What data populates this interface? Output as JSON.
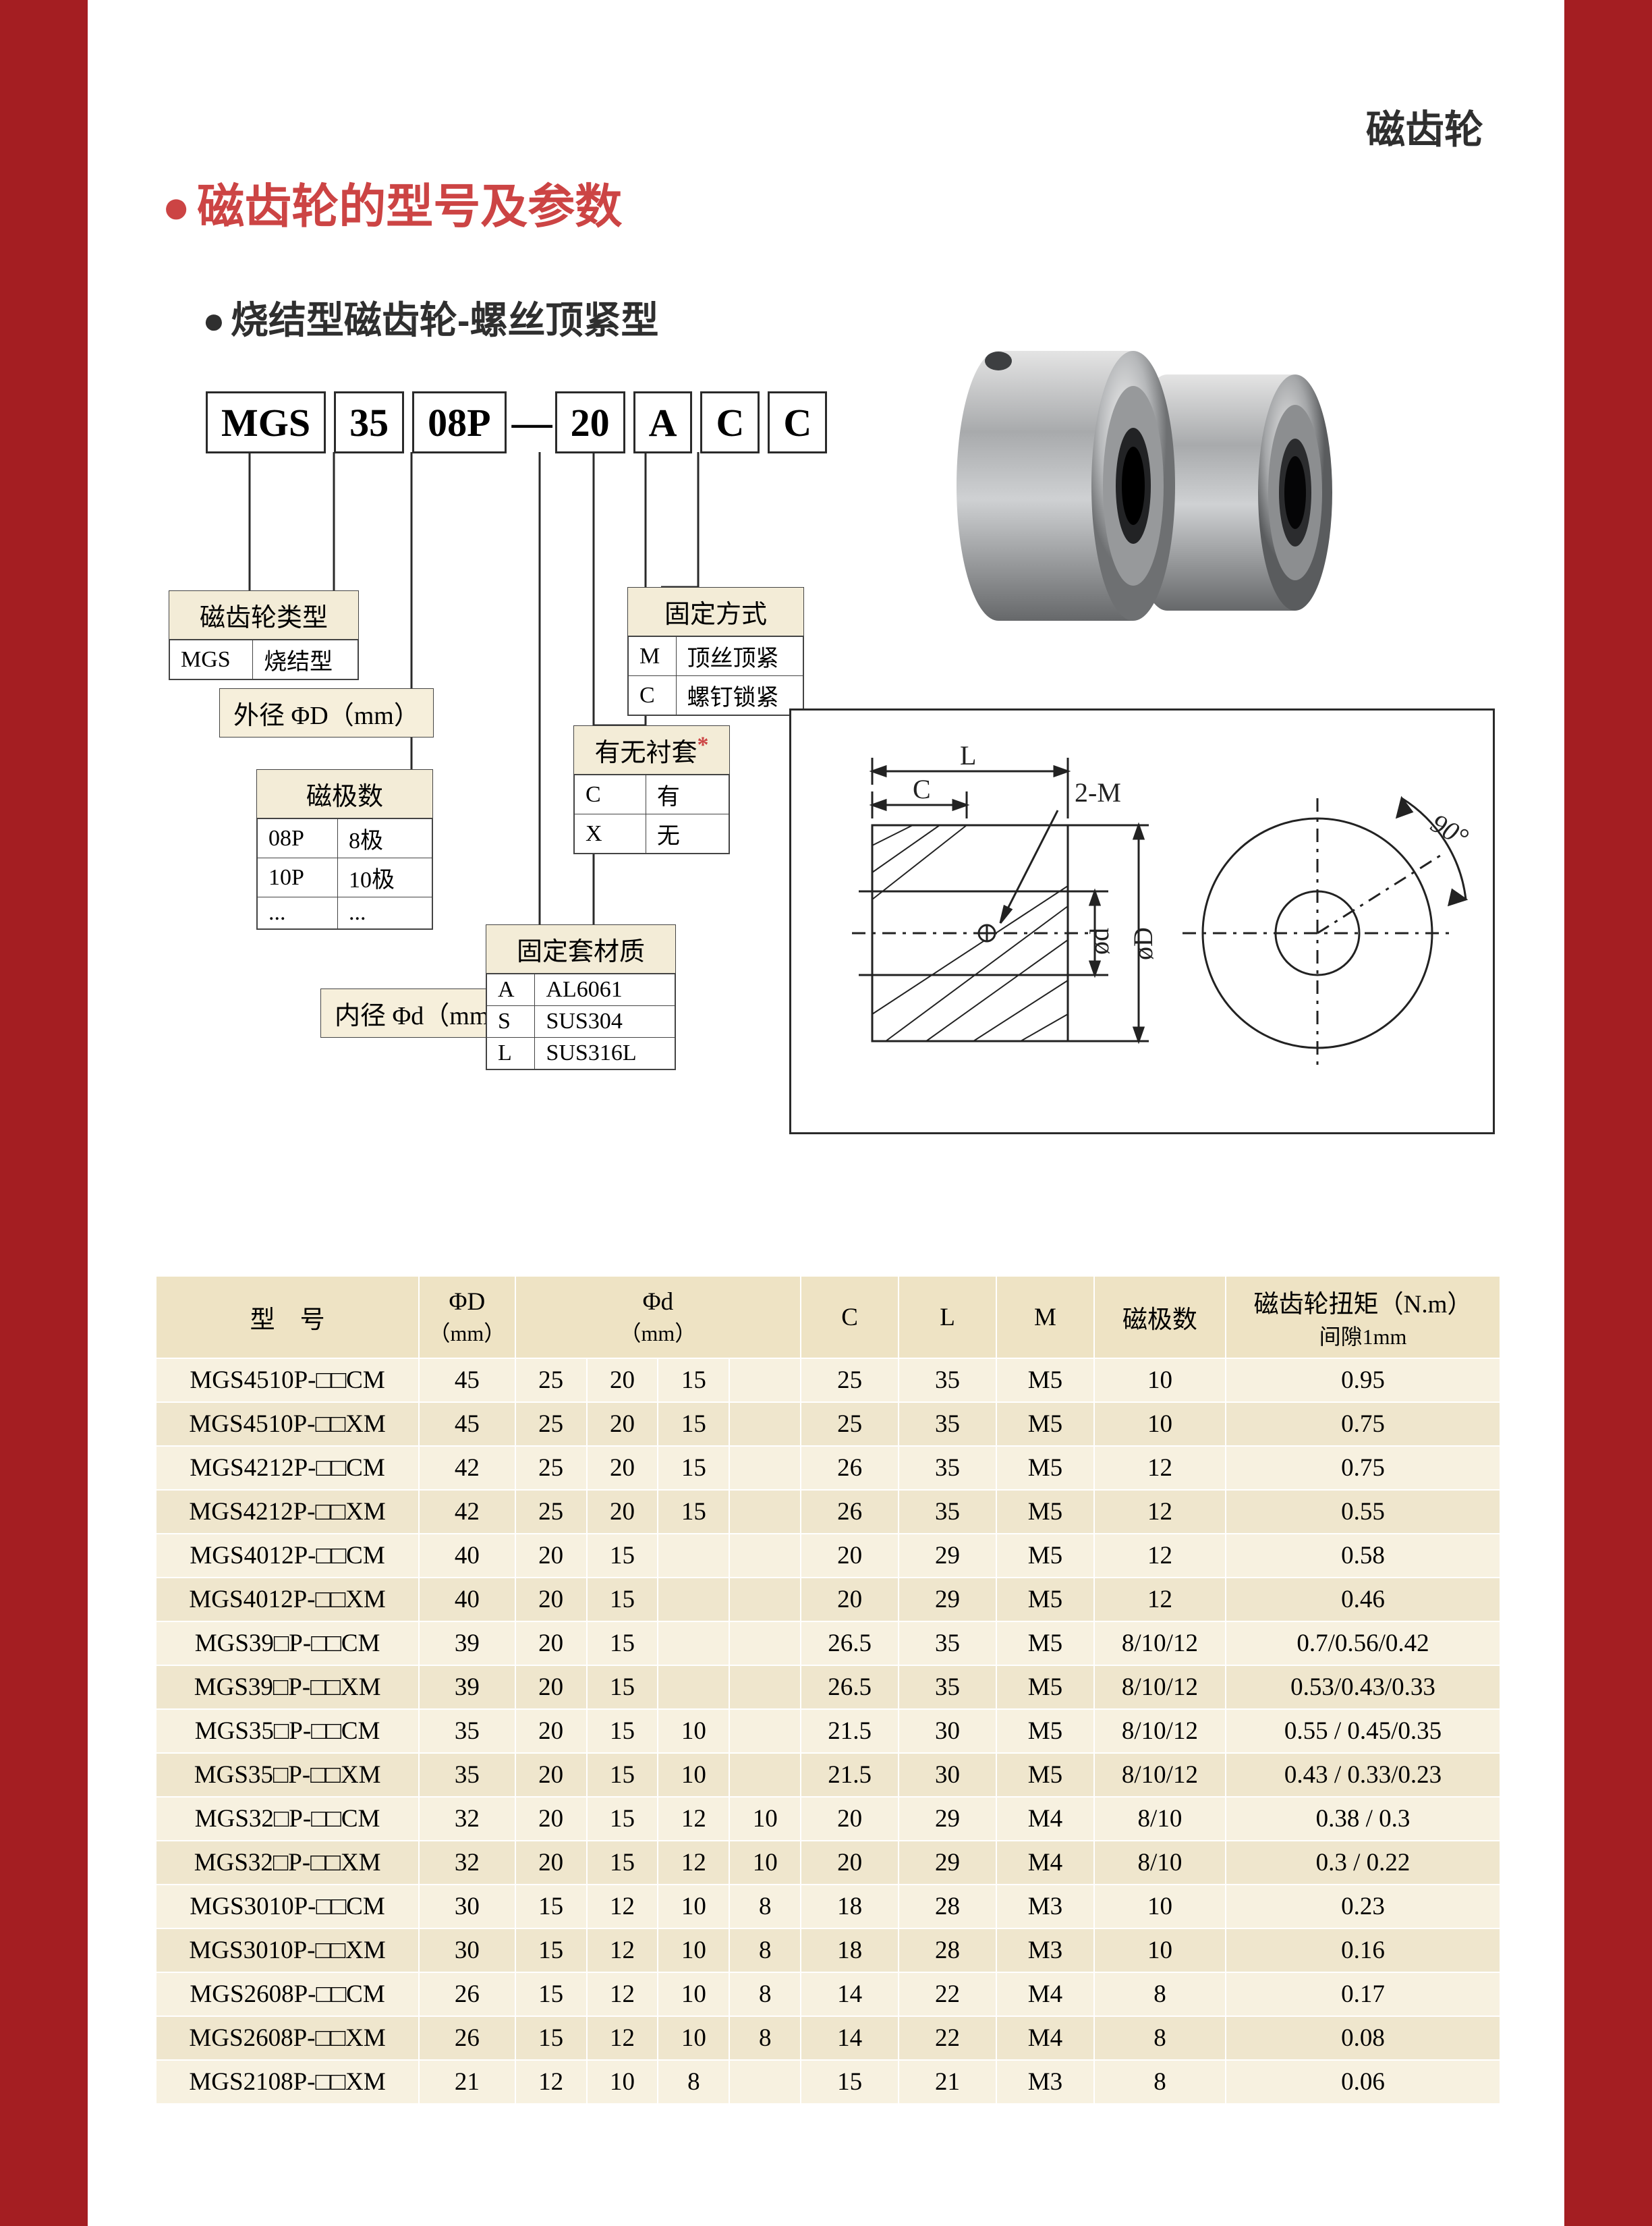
{
  "header": {
    "corner": "磁齿轮",
    "title": "磁齿轮的型号及参数",
    "subtitle": "烧结型磁齿轮-螺丝顶紧型"
  },
  "code": [
    "MGS",
    "35",
    "08P",
    "—",
    "20",
    "A",
    "C",
    "C"
  ],
  "legends": {
    "type": {
      "title": "磁齿轮类型",
      "rows": [
        [
          "MGS",
          "烧结型"
        ]
      ]
    },
    "od": {
      "text": "外径  ΦD（mm）"
    },
    "poles": {
      "title": "磁极数",
      "rows": [
        [
          "08P",
          "8极"
        ],
        [
          "10P",
          "10极"
        ],
        [
          "...",
          "..."
        ]
      ]
    },
    "id": {
      "text": "内径  Φd（mm）"
    },
    "mat": {
      "title": "固定套材质",
      "rows": [
        [
          "A",
          "AL6061"
        ],
        [
          "S",
          "SUS304"
        ],
        [
          "L",
          "SUS316L"
        ]
      ]
    },
    "sleeve": {
      "title": "有无衬套",
      "note": "*",
      "rows": [
        [
          "C",
          "有"
        ],
        [
          "X",
          "无"
        ]
      ]
    },
    "fix": {
      "title": "固定方式",
      "rows": [
        [
          "M",
          "顶丝顶紧"
        ],
        [
          "C",
          "螺钉锁紧"
        ]
      ]
    }
  },
  "tech": {
    "L": "L",
    "C": "C",
    "M": "2-M",
    "d": "ød",
    "D": "øD",
    "ang": "90°"
  },
  "table": {
    "headers": {
      "model": "型　号",
      "D": "ΦD",
      "Dunit": "（mm）",
      "d": "Φd",
      "dunit": "（mm）",
      "C": "C",
      "L": "L",
      "M": "M",
      "poles": "磁极数",
      "torque": "磁齿轮扭矩（N.m）",
      "gap": "间隙1mm"
    },
    "rows": [
      {
        "m": "MGS4510P-□□CM",
        "D": "45",
        "d": [
          "25",
          "20",
          "15",
          ""
        ],
        "C": "25",
        "L": "35",
        "M": "M5",
        "p": "10",
        "t": "0.95"
      },
      {
        "m": "MGS4510P-□□XM",
        "D": "45",
        "d": [
          "25",
          "20",
          "15",
          ""
        ],
        "C": "25",
        "L": "35",
        "M": "M5",
        "p": "10",
        "t": "0.75"
      },
      {
        "m": "MGS4212P-□□CM",
        "D": "42",
        "d": [
          "25",
          "20",
          "15",
          ""
        ],
        "C": "26",
        "L": "35",
        "M": "M5",
        "p": "12",
        "t": "0.75"
      },
      {
        "m": "MGS4212P-□□XM",
        "D": "42",
        "d": [
          "25",
          "20",
          "15",
          ""
        ],
        "C": "26",
        "L": "35",
        "M": "M5",
        "p": "12",
        "t": "0.55"
      },
      {
        "m": "MGS4012P-□□CM",
        "D": "40",
        "d": [
          "20",
          "15",
          "",
          ""
        ],
        "C": "20",
        "L": "29",
        "M": "M5",
        "p": "12",
        "t": "0.58"
      },
      {
        "m": "MGS4012P-□□XM",
        "D": "40",
        "d": [
          "20",
          "15",
          "",
          ""
        ],
        "C": "20",
        "L": "29",
        "M": "M5",
        "p": "12",
        "t": "0.46"
      },
      {
        "m": "MGS39□P-□□CM",
        "D": "39",
        "d": [
          "20",
          "15",
          "",
          ""
        ],
        "C": "26.5",
        "L": "35",
        "M": "M5",
        "p": "8/10/12",
        "t": "0.7/0.56/0.42"
      },
      {
        "m": "MGS39□P-□□XM",
        "D": "39",
        "d": [
          "20",
          "15",
          "",
          ""
        ],
        "C": "26.5",
        "L": "35",
        "M": "M5",
        "p": "8/10/12",
        "t": "0.53/0.43/0.33"
      },
      {
        "m": "MGS35□P-□□CM",
        "D": "35",
        "d": [
          "20",
          "15",
          "10",
          ""
        ],
        "C": "21.5",
        "L": "30",
        "M": "M5",
        "p": "8/10/12",
        "t": "0.55 / 0.45/0.35"
      },
      {
        "m": "MGS35□P-□□XM",
        "D": "35",
        "d": [
          "20",
          "15",
          "10",
          ""
        ],
        "C": "21.5",
        "L": "30",
        "M": "M5",
        "p": "8/10/12",
        "t": "0.43 / 0.33/0.23"
      },
      {
        "m": "MGS32□P-□□CM",
        "D": "32",
        "d": [
          "20",
          "15",
          "12",
          "10"
        ],
        "C": "20",
        "L": "29",
        "M": "M4",
        "p": "8/10",
        "t": "0.38 / 0.3"
      },
      {
        "m": "MGS32□P-□□XM",
        "D": "32",
        "d": [
          "20",
          "15",
          "12",
          "10"
        ],
        "C": "20",
        "L": "29",
        "M": "M4",
        "p": "8/10",
        "t": "0.3 / 0.22"
      },
      {
        "m": "MGS3010P-□□CM",
        "D": "30",
        "d": [
          "15",
          "12",
          "10",
          "8"
        ],
        "C": "18",
        "L": "28",
        "M": "M3",
        "p": "10",
        "t": "0.23"
      },
      {
        "m": "MGS3010P-□□XM",
        "D": "30",
        "d": [
          "15",
          "12",
          "10",
          "8"
        ],
        "C": "18",
        "L": "28",
        "M": "M3",
        "p": "10",
        "t": "0.16"
      },
      {
        "m": "MGS2608P-□□CM",
        "D": "26",
        "d": [
          "15",
          "12",
          "10",
          "8"
        ],
        "C": "14",
        "L": "22",
        "M": "M4",
        "p": "8",
        "t": "0.17"
      },
      {
        "m": "MGS2608P-□□XM",
        "D": "26",
        "d": [
          "15",
          "12",
          "10",
          "8"
        ],
        "C": "14",
        "L": "22",
        "M": "M4",
        "p": "8",
        "t": "0.08"
      },
      {
        "m": "MGS2108P-□□XM",
        "D": "21",
        "d": [
          "12",
          "10",
          "8",
          ""
        ],
        "C": "15",
        "L": "21",
        "M": "M3",
        "p": "8",
        "t": "0.06"
      }
    ],
    "widths": {
      "model": 350,
      "D": 120,
      "d": 360,
      "C": 130,
      "L": 130,
      "M": 130,
      "p": 160,
      "t": 340
    }
  },
  "colors": {
    "red": "#a41e22",
    "title": "#c44",
    "headerBg": "#eee3c4",
    "rowOdd": "#f7f1e0",
    "rowEven": "#efe6cd",
    "legendBg": "#f6efdb"
  }
}
